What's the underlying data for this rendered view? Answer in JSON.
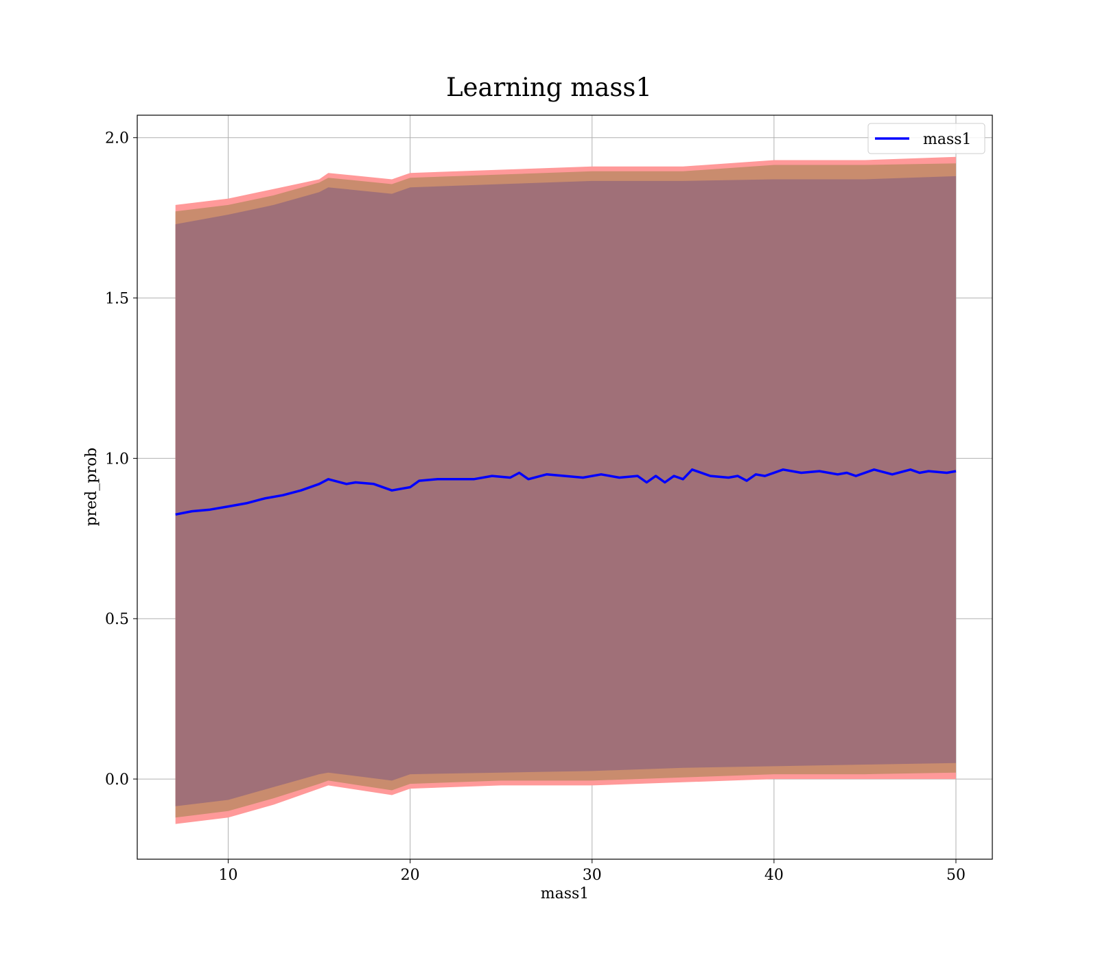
{
  "chart_data": {
    "type": "line",
    "title": "Learning mass1",
    "xlabel": "mass1",
    "ylabel": "pred_prob",
    "xlim": [
      5,
      52
    ],
    "ylim": [
      -0.25,
      2.07
    ],
    "xticks": [
      10,
      20,
      30,
      40,
      50
    ],
    "xtick_labels": [
      "10",
      "20",
      "30",
      "40",
      "50"
    ],
    "yticks": [
      0.0,
      0.5,
      1.0,
      1.5,
      2.0
    ],
    "ytick_labels": [
      "0.0",
      "0.5",
      "1.0",
      "1.5",
      "2.0"
    ],
    "grid": true,
    "legend_position": "top-right",
    "series": [
      {
        "name": "mass1",
        "color": "#0000ff",
        "x": [
          7.1,
          8.0,
          9.0,
          10.0,
          11.0,
          12.0,
          13.0,
          14.0,
          15.0,
          15.5,
          16.5,
          17.0,
          18.0,
          19.0,
          19.5,
          20.0,
          20.5,
          21.5,
          22.5,
          23.5,
          24.5,
          25.5,
          26.0,
          26.5,
          27.5,
          28.5,
          29.5,
          30.5,
          31.5,
          32.5,
          33.0,
          33.5,
          34.0,
          34.5,
          35.0,
          35.5,
          36.5,
          37.5,
          38.0,
          38.5,
          39.0,
          39.5,
          40.5,
          41.5,
          42.5,
          43.5,
          44.0,
          44.5,
          45.5,
          46.5,
          47.5,
          48.0,
          48.5,
          49.5,
          50.0
        ],
        "y": [
          0.825,
          0.835,
          0.84,
          0.85,
          0.86,
          0.875,
          0.885,
          0.9,
          0.92,
          0.935,
          0.92,
          0.925,
          0.92,
          0.9,
          0.905,
          0.91,
          0.93,
          0.935,
          0.935,
          0.935,
          0.945,
          0.94,
          0.955,
          0.935,
          0.95,
          0.945,
          0.94,
          0.95,
          0.94,
          0.945,
          0.925,
          0.945,
          0.925,
          0.945,
          0.935,
          0.965,
          0.945,
          0.94,
          0.945,
          0.93,
          0.95,
          0.945,
          0.965,
          0.955,
          0.96,
          0.95,
          0.955,
          0.945,
          0.965,
          0.95,
          0.965,
          0.955,
          0.96,
          0.955,
          0.96
        ]
      }
    ],
    "bands": [
      {
        "color": "#ff9999",
        "x": [
          7.1,
          10.0,
          12.5,
          15.0,
          15.5,
          19.0,
          20.0,
          25.0,
          30.0,
          35.0,
          40.0,
          45.0,
          50.0
        ],
        "upper": [
          1.79,
          1.81,
          1.84,
          1.87,
          1.89,
          1.87,
          1.89,
          1.9,
          1.91,
          1.91,
          1.93,
          1.93,
          1.94
        ],
        "lower": [
          -0.14,
          -0.12,
          -0.08,
          -0.03,
          -0.02,
          -0.05,
          -0.03,
          -0.02,
          -0.02,
          -0.01,
          0.0,
          0.0,
          0.0
        ]
      },
      {
        "color": "#c98c6e",
        "x": [
          7.1,
          10.0,
          12.5,
          15.0,
          15.5,
          19.0,
          20.0,
          25.0,
          30.0,
          35.0,
          40.0,
          45.0,
          50.0
        ],
        "upper": [
          1.77,
          1.79,
          1.82,
          1.86,
          1.875,
          1.855,
          1.875,
          1.885,
          1.895,
          1.895,
          1.915,
          1.915,
          1.92
        ],
        "lower": [
          -0.12,
          -0.1,
          -0.06,
          -0.015,
          -0.005,
          -0.035,
          -0.015,
          -0.005,
          -0.005,
          0.005,
          0.015,
          0.015,
          0.02
        ]
      },
      {
        "color": "#a07078",
        "x": [
          7.1,
          10.0,
          12.5,
          15.0,
          15.5,
          19.0,
          20.0,
          25.0,
          30.0,
          35.0,
          40.0,
          45.0,
          50.0
        ],
        "upper": [
          1.73,
          1.76,
          1.79,
          1.83,
          1.845,
          1.825,
          1.845,
          1.855,
          1.865,
          1.865,
          1.87,
          1.87,
          1.88
        ],
        "lower": [
          -0.085,
          -0.065,
          -0.025,
          0.015,
          0.02,
          -0.005,
          0.015,
          0.02,
          0.025,
          0.035,
          0.04,
          0.045,
          0.05
        ]
      }
    ]
  }
}
